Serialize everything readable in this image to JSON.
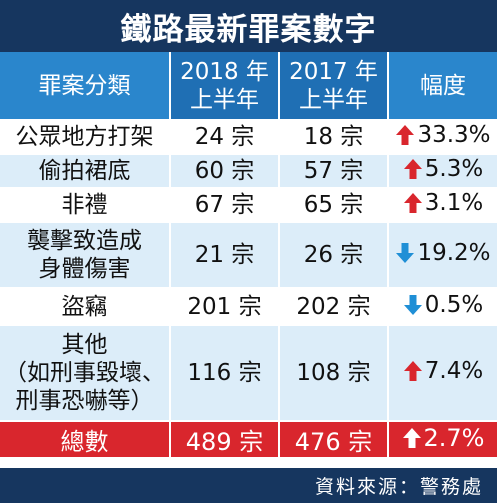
{
  "title": "鐵路最新罪案數字",
  "colors": {
    "title_bg": "#16365f",
    "header_bg": "#1f6fb4",
    "stripe_bg": "#dcedf9",
    "total_bg": "#d9262d",
    "up_arrow": "#d9262d",
    "down_arrow": "#1f8fd6"
  },
  "header": {
    "category": "罪案分類",
    "year_2018_line1": "2018 年",
    "year_2018_line2": "上半年",
    "year_2017_line1": "2017 年",
    "year_2017_line2": "上半年",
    "change": "幅度"
  },
  "rows": [
    {
      "category_line1": "公眾地方打架",
      "category_line2": "",
      "y2018": "24 宗",
      "y2017": "18 宗",
      "change": "33.3%",
      "direction": "up"
    },
    {
      "category_line1": "偷拍裙底",
      "category_line2": "",
      "y2018": "60 宗",
      "y2017": "57 宗",
      "change": "5.3%",
      "direction": "up"
    },
    {
      "category_line1": "非禮",
      "category_line2": "",
      "y2018": "67 宗",
      "y2017": "65 宗",
      "change": "3.1%",
      "direction": "up"
    },
    {
      "category_line1": "襲擊致造成",
      "category_line2": "身體傷害",
      "y2018": "21 宗",
      "y2017": "26 宗",
      "change": "19.2%",
      "direction": "down"
    },
    {
      "category_line1": "盜竊",
      "category_line2": "",
      "y2018": "201 宗",
      "y2017": "202 宗",
      "change": "0.5%",
      "direction": "down"
    },
    {
      "category_line1": "其他",
      "category_line2": "（如刑事毀壞、",
      "category_line3": "刑事恐嚇等）",
      "y2018": "116 宗",
      "y2017": "108 宗",
      "change": "7.4%",
      "direction": "up"
    }
  ],
  "total": {
    "label": "總數",
    "y2018": "489 宗",
    "y2017": "476 宗",
    "change": "2.7%",
    "direction": "up"
  },
  "source": "資料來源：警務處",
  "chart_data": {
    "type": "table",
    "title": "鐵路最新罪案數字",
    "columns": [
      "罪案分類",
      "2018 年上半年",
      "2017 年上半年",
      "幅度"
    ],
    "rows": [
      [
        "公眾地方打架",
        24,
        18,
        "+33.3%"
      ],
      [
        "偷拍裙底",
        60,
        57,
        "+5.3%"
      ],
      [
        "非禮",
        67,
        65,
        "+3.1%"
      ],
      [
        "襲擊致造成身體傷害",
        21,
        26,
        "-19.2%"
      ],
      [
        "盜竊",
        201,
        202,
        "-0.5%"
      ],
      [
        "其他（如刑事毀壞、刑事恐嚇等）",
        116,
        108,
        "+7.4%"
      ],
      [
        "總數",
        489,
        476,
        "+2.7%"
      ]
    ]
  }
}
